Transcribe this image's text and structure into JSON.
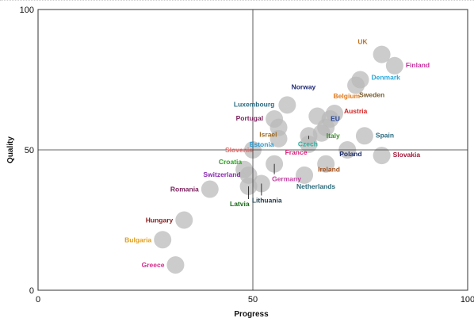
{
  "chart_data": {
    "type": "scatter",
    "title": "",
    "xlabel": "Progress",
    "ylabel": "Quality",
    "xlim": [
      0,
      100
    ],
    "ylim": [
      0,
      100
    ],
    "xticks": [
      "0",
      "50",
      "100"
    ],
    "yticks": [
      "0",
      "50",
      "100"
    ],
    "reference_lines": {
      "x": 50,
      "y": 50
    },
    "grid": false,
    "points": [
      {
        "label": "UK",
        "x": 80,
        "y": 84,
        "color": "#c0711f"
      },
      {
        "label": "Finland",
        "x": 83,
        "y": 80,
        "color": "#c0309a"
      },
      {
        "label": "Denmark",
        "x": 75,
        "y": 75,
        "color": "#2aa6d8"
      },
      {
        "label": "Sweden",
        "x": 74,
        "y": 73,
        "color": "#7a5c2c"
      },
      {
        "label": "Norway",
        "x": 65,
        "y": 62,
        "color": "#1f2a7a"
      },
      {
        "label": "Belgium",
        "x": 68,
        "y": 61,
        "color": "#e0791c"
      },
      {
        "label": "Austria",
        "x": 69,
        "y": 63,
        "color": "#d42020"
      },
      {
        "label": "Luxembourg",
        "x": 58,
        "y": 66,
        "color": "#2a6a80"
      },
      {
        "label": "Portugal",
        "x": 55,
        "y": 61,
        "color": "#7a1f5a"
      },
      {
        "label": "EU",
        "x": 67,
        "y": 58,
        "color": "#2446a0"
      },
      {
        "label": "Italy",
        "x": 66,
        "y": 56,
        "color": "#3a8a2a"
      },
      {
        "label": "Israel",
        "x": 56,
        "y": 58,
        "color": "#a06a20"
      },
      {
        "label": "Estonia",
        "x": 56,
        "y": 54,
        "color": "#2a9ad0"
      },
      {
        "label": "Spain",
        "x": 76,
        "y": 55,
        "color": "#2a6a80"
      },
      {
        "label": "Czech",
        "x": 63,
        "y": 55,
        "color": "#2ab0a0"
      },
      {
        "label": "Slovenia",
        "x": 50,
        "y": 50,
        "color": "#e06a6a"
      },
      {
        "label": "France",
        "x": 63,
        "y": 52,
        "color": "#d4207a"
      },
      {
        "label": "Slovakia",
        "x": 80,
        "y": 48,
        "color": "#a01a3a"
      },
      {
        "label": "Poland",
        "x": 72,
        "y": 50,
        "color": "#1a2a6a"
      },
      {
        "label": "Croatia",
        "x": 48,
        "y": 43,
        "color": "#2aa020"
      },
      {
        "label": "Ireland",
        "x": 67,
        "y": 45,
        "color": "#a0501a"
      },
      {
        "label": "Switzerland",
        "x": 49,
        "y": 41,
        "color": "#8a2ab0"
      },
      {
        "label": "Netherlands",
        "x": 62,
        "y": 41,
        "color": "#2a6a7a"
      },
      {
        "label": "Germany",
        "x": 55,
        "y": 45,
        "color": "#c040a0"
      },
      {
        "label": "Romania",
        "x": 40,
        "y": 36,
        "color": "#7a1f5a"
      },
      {
        "label": "Latvia",
        "x": 49,
        "y": 37,
        "color": "#1a6a1a"
      },
      {
        "label": "Lithuania",
        "x": 52,
        "y": 38,
        "color": "#1a3a4a"
      },
      {
        "label": "Hungary",
        "x": 34,
        "y": 25,
        "color": "#8a1a1a"
      },
      {
        "label": "Bulgaria",
        "x": 29,
        "y": 18,
        "color": "#e0a020"
      },
      {
        "label": "Greece",
        "x": 32,
        "y": 9,
        "color": "#d42a8a"
      }
    ]
  }
}
